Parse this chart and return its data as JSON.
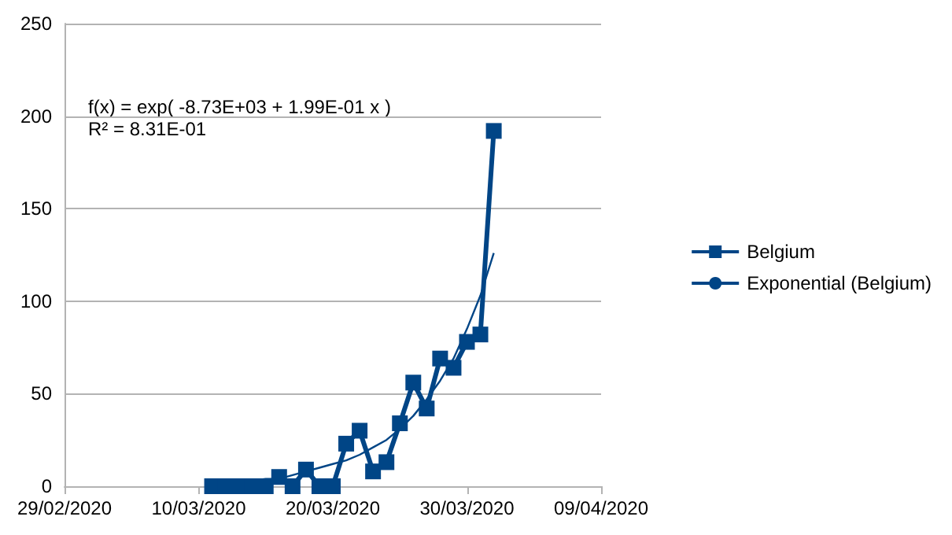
{
  "chart_data": {
    "type": "line",
    "x": [
      "2020-03-11",
      "2020-03-12",
      "2020-03-13",
      "2020-03-14",
      "2020-03-15",
      "2020-03-16",
      "2020-03-17",
      "2020-03-18",
      "2020-03-19",
      "2020-03-20",
      "2020-03-21",
      "2020-03-22",
      "2020-03-23",
      "2020-03-24",
      "2020-03-25",
      "2020-03-26",
      "2020-03-27",
      "2020-03-28",
      "2020-03-29",
      "2020-03-30",
      "2020-03-31",
      "2020-04-01"
    ],
    "series": [
      {
        "name": "Belgium",
        "color": "#004586",
        "marker": "square",
        "values": [
          0,
          0,
          0,
          0,
          0,
          5,
          0,
          9,
          0,
          0,
          23,
          30,
          8,
          13,
          34,
          56,
          42,
          69,
          64,
          78,
          82,
          192
        ]
      },
      {
        "name": "Exponential (Belgium)",
        "color": "#004586",
        "marker": "none",
        "values": [
          2,
          2,
          2,
          3,
          4,
          4,
          6,
          8,
          10,
          12,
          14,
          17,
          21,
          25,
          31,
          38,
          47,
          57,
          69,
          85,
          103,
          126
        ]
      }
    ],
    "xlim": [
      "2020-02-29",
      "2020-04-09"
    ],
    "xticks": [
      {
        "value": "2020-02-29",
        "label": "29/02/2020"
      },
      {
        "value": "2020-03-10",
        "label": "10/03/2020"
      },
      {
        "value": "2020-03-20",
        "label": "20/03/2020"
      },
      {
        "value": "2020-03-30",
        "label": "30/03/2020"
      },
      {
        "value": "2020-04-09",
        "label": "09/04/2020"
      }
    ],
    "ylim": [
      0,
      250
    ],
    "yticks": [
      0,
      50,
      100,
      150,
      200,
      250
    ],
    "grid": "y",
    "legend": "right",
    "annotations": [
      "f(x) = exp( -8.73E+03 + 1.99E-01 x )",
      "R² = 8.31E-01"
    ]
  }
}
